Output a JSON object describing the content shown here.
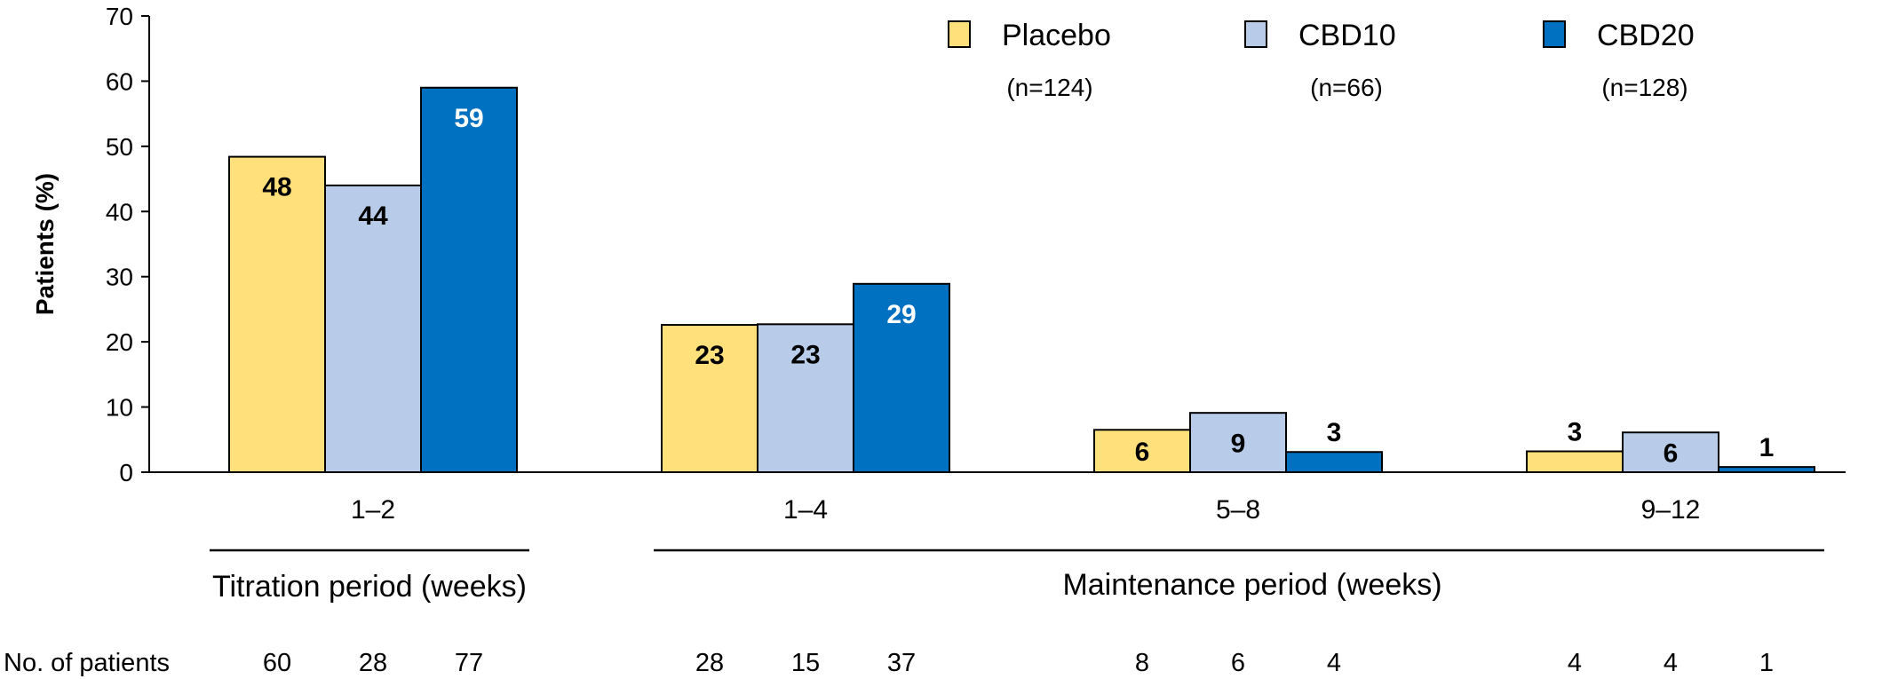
{
  "chart_data": {
    "type": "bar",
    "ylabel": "Patients (%)",
    "ylim": [
      0,
      70
    ],
    "yticks": [
      0,
      10,
      20,
      30,
      40,
      50,
      60,
      70
    ],
    "categories": [
      "1–2",
      "1–4",
      "5–8",
      "9–12"
    ],
    "series": [
      {
        "name": "Placebo",
        "n_label": "(n=124)",
        "color": "#FFE07A",
        "label_color": "#000000",
        "values": [
          48,
          23,
          6,
          3
        ],
        "actual": [
          48.4,
          22.6,
          6.5,
          3.2
        ]
      },
      {
        "name": "CBD10",
        "n_label": "(n=66)",
        "color": "#B8CCEA",
        "label_color": "#000000",
        "values": [
          44,
          23,
          9,
          6
        ],
        "actual": [
          44,
          22.7,
          9.1,
          6.1
        ]
      },
      {
        "name": "CBD20",
        "n_label": "(n=128)",
        "color": "#0070C0",
        "label_color": "#ffffff",
        "values": [
          59,
          29,
          3,
          1
        ],
        "actual": [
          59,
          28.9,
          3.1,
          0.8
        ]
      }
    ],
    "periods": [
      {
        "label": "Titration period (weeks)"
      },
      {
        "label": "Maintenance period (weeks)"
      }
    ],
    "patient_counts": {
      "label": "No. of patients",
      "values": [
        [
          60,
          28,
          77
        ],
        [
          28,
          15,
          37
        ],
        [
          8,
          6,
          4
        ],
        [
          4,
          4,
          1
        ]
      ]
    },
    "legend_position": "top-right",
    "grid": false
  }
}
